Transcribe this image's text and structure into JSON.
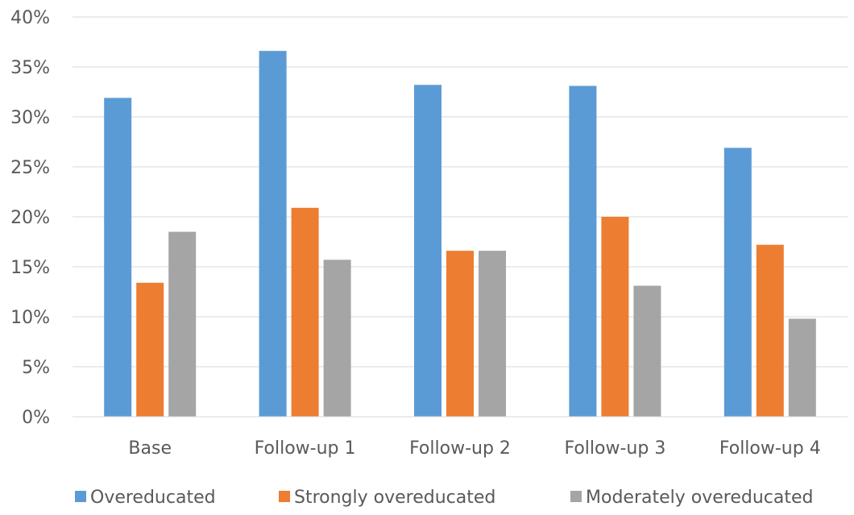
{
  "chart_data": {
    "type": "bar",
    "title": "",
    "xlabel": "",
    "ylabel": "",
    "categories": [
      "Base",
      "Follow-up 1",
      "Follow-up 2",
      "Follow-up 3",
      "Follow-up 4"
    ],
    "series": [
      {
        "name": "Overeducated",
        "color": "#5b9bd5",
        "values": [
          31.9,
          36.6,
          33.2,
          33.1,
          26.9
        ]
      },
      {
        "name": "Strongly overeducated",
        "color": "#ed7d31",
        "values": [
          13.4,
          20.9,
          16.6,
          20.0,
          17.2
        ]
      },
      {
        "name": "Moderately overeducated",
        "color": "#a5a5a5",
        "values": [
          18.5,
          15.7,
          16.6,
          13.1,
          9.8
        ]
      }
    ],
    "ylim": [
      0,
      40
    ],
    "y_ticks": [
      "0%",
      "5%",
      "10%",
      "15%",
      "20%",
      "25%",
      "30%",
      "35%",
      "40%"
    ],
    "grid": true,
    "legend_position": "bottom"
  }
}
